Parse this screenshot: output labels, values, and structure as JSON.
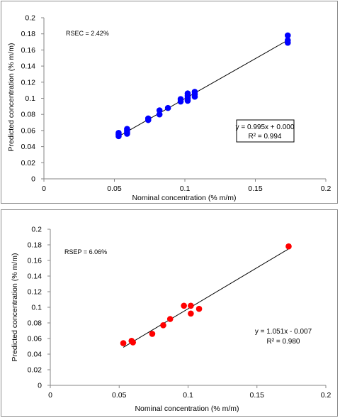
{
  "chart_data": [
    {
      "type": "scatter",
      "title": "",
      "xlabel": "Nominal concentration (% m/m)",
      "ylabel": "Predicted concentration (% m/m)",
      "xlim": [
        0,
        0.2
      ],
      "ylim": [
        0,
        0.2
      ],
      "xticks": [
        "0",
        "0.05",
        "0.1",
        "0.15",
        "0.2"
      ],
      "yticks": [
        "0",
        "0.02",
        "0.04",
        "0.06",
        "0.08",
        "0.1",
        "0.12",
        "0.14",
        "0.16",
        "0.18",
        "0.2"
      ],
      "grid": false,
      "marker_color": "#0000ff",
      "annotation": "RSEC = 2.42%",
      "equation": "y = 0.995x + 0.000",
      "r2": "R² = 0.994",
      "equation_boxed": true,
      "fit": {
        "slope": 0.995,
        "intercept": 0.0,
        "x_range": [
          0.053,
          0.173
        ]
      },
      "series": [
        {
          "x": [
            0.053,
            0.053,
            0.053,
            0.059,
            0.059,
            0.059,
            0.059,
            0.074,
            0.074,
            0.082,
            0.082,
            0.088,
            0.097,
            0.097,
            0.102,
            0.102,
            0.102,
            0.102,
            0.107,
            0.107,
            0.107,
            0.173,
            0.173,
            0.173
          ],
          "y": [
            0.053,
            0.055,
            0.057,
            0.056,
            0.058,
            0.06,
            0.062,
            0.073,
            0.075,
            0.08,
            0.085,
            0.088,
            0.096,
            0.099,
            0.097,
            0.1,
            0.103,
            0.106,
            0.102,
            0.105,
            0.108,
            0.169,
            0.172,
            0.178
          ]
        }
      ]
    },
    {
      "type": "scatter",
      "title": "",
      "xlabel": "Nominal concentration (% m/m)",
      "ylabel": "Predicted concentration (% m/m)",
      "xlim": [
        0,
        0.2
      ],
      "ylim": [
        0,
        0.2
      ],
      "xticks": [
        "0",
        "0.05",
        "0.1",
        "0.15",
        "0.2"
      ],
      "yticks": [
        "0",
        "0.02",
        "0.04",
        "0.06",
        "0.08",
        "0.1",
        "0.12",
        "0.14",
        "0.16",
        "0.18",
        "0.2"
      ],
      "grid": false,
      "marker_color": "#ff0000",
      "annotation": "RSEP = 6.06%",
      "equation": "y = 1.051x - 0.007",
      "r2": "R² = 0.980",
      "equation_boxed": false,
      "fit": {
        "slope": 1.051,
        "intercept": -0.007,
        "x_range": [
          0.053,
          0.173
        ]
      },
      "series": [
        {
          "x": [
            0.053,
            0.059,
            0.06,
            0.074,
            0.082,
            0.087,
            0.097,
            0.102,
            0.102,
            0.108,
            0.173
          ],
          "y": [
            0.054,
            0.057,
            0.055,
            0.066,
            0.077,
            0.085,
            0.102,
            0.102,
            0.092,
            0.098,
            0.178
          ]
        }
      ]
    }
  ]
}
